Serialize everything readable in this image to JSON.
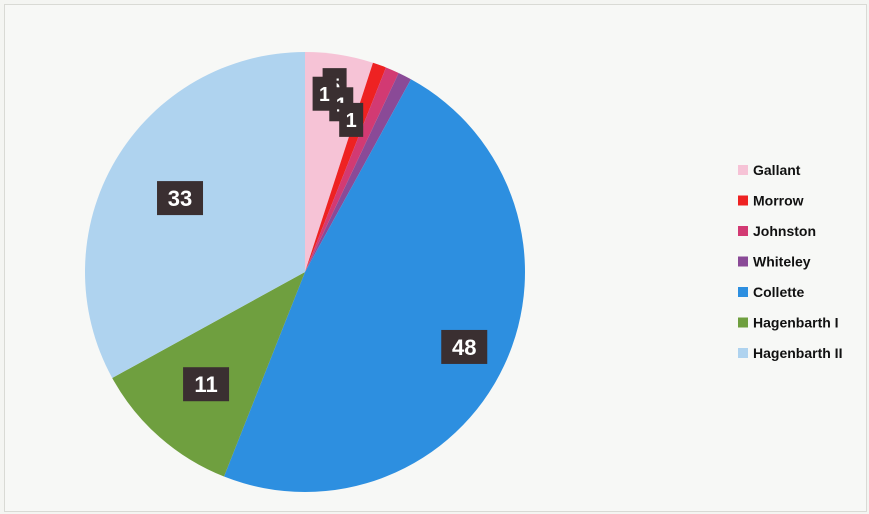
{
  "chart_data": {
    "type": "pie",
    "title": "",
    "legend_position": "right",
    "categories": [
      "Gallant",
      "Morrow",
      "Johnston",
      "Whiteley",
      "Collette",
      "Hagenbarth I",
      "Hagenbarth II"
    ],
    "values": [
      5,
      1,
      1,
      1,
      48,
      11,
      33
    ],
    "colors": [
      "#f6c3d6",
      "#ee2222",
      "#d23a73",
      "#8a4a97",
      "#2d8fe0",
      "#6f9f3f",
      "#afd3ef"
    ],
    "labels": [
      "5",
      "1",
      "1",
      "1",
      "48",
      "11",
      "33"
    ]
  }
}
